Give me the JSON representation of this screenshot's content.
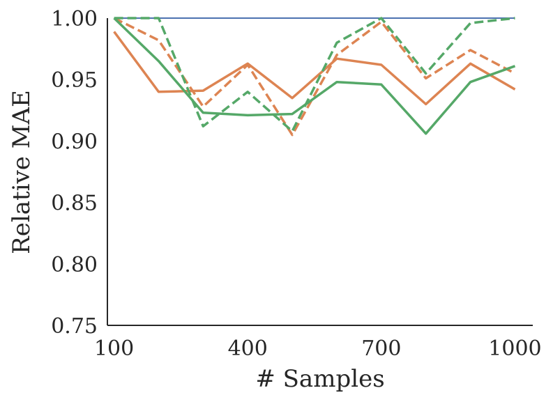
{
  "chart_data": {
    "type": "line",
    "xlabel": "# Samples",
    "ylabel": "Relative MAE",
    "xlim": [
      85,
      1040
    ],
    "ylim": [
      0.75,
      1.0
    ],
    "xticks": [
      100,
      400,
      700,
      1000
    ],
    "yticks": [
      0.75,
      0.8,
      0.85,
      0.9,
      0.95,
      1.0
    ],
    "ytick_labels": [
      "0.75",
      "0.80",
      "0.85",
      "0.90",
      "0.95",
      "1.00"
    ],
    "grid": false,
    "x": [
      100,
      200,
      300,
      400,
      500,
      600,
      700,
      800,
      900,
      1000
    ],
    "series": [
      {
        "color": "#4c72b0",
        "dash": "solid",
        "values": [
          1.0,
          1.0,
          1.0,
          1.0,
          1.0,
          1.0,
          1.0,
          1.0,
          1.0,
          1.0
        ]
      },
      {
        "color": "#dd8452",
        "dash": "solid",
        "values": [
          0.989,
          0.94,
          0.941,
          0.963,
          0.935,
          0.967,
          0.962,
          0.93,
          0.963,
          0.942
        ]
      },
      {
        "color": "#dd8452",
        "dash": "dashed",
        "values": [
          1.0,
          0.982,
          0.928,
          0.962,
          0.905,
          0.97,
          0.997,
          0.951,
          0.974,
          0.955
        ]
      },
      {
        "color": "#55a868",
        "dash": "solid",
        "values": [
          1.0,
          0.965,
          0.923,
          0.921,
          0.922,
          0.948,
          0.946,
          0.906,
          0.948,
          0.961
        ]
      },
      {
        "color": "#55a868",
        "dash": "dashed",
        "values": [
          1.0,
          1.0,
          0.912,
          0.94,
          0.908,
          0.98,
          1.0,
          0.955,
          0.996,
          1.0
        ]
      }
    ]
  }
}
